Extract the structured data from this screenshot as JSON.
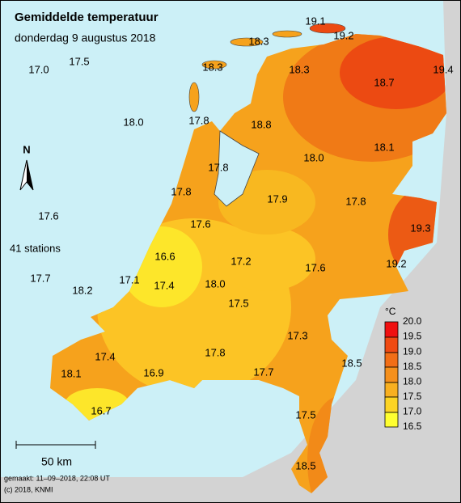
{
  "title": "Gemiddelde temperatuur",
  "subtitle": "donderdag 9 augustus 2018",
  "north": "N",
  "station_count": "41 stations",
  "stations": [
    "19.1",
    "19.2",
    "18.3",
    "18.3",
    "18.3",
    "18.7",
    "19.4",
    "17.0",
    "17.5",
    "18.0",
    "17.8",
    "18.8",
    "18.0",
    "18.1",
    "17.8",
    "17.8",
    "17.9",
    "17.8",
    "19.3",
    "17.6",
    "17.6",
    "16.6",
    "17.2",
    "17.6",
    "19.2",
    "17.7",
    "18.2",
    "17.1",
    "17.4",
    "18.0",
    "17.5",
    "17.3",
    "17.4",
    "17.8",
    "18.5",
    "17.7",
    "18.1",
    "16.9",
    "16.7",
    "17.5",
    "18.5"
  ],
  "legend": {
    "unit": "°C",
    "ticks": [
      "20.0",
      "19.5",
      "19.0",
      "18.5",
      "18.0",
      "17.5",
      "17.0",
      "16.5"
    ]
  },
  "scale_bar": "50 km",
  "footer": [
    "gemaakt: 11–09–2018, 22:08 UT",
    "(c) 2018, KNMI"
  ]
}
